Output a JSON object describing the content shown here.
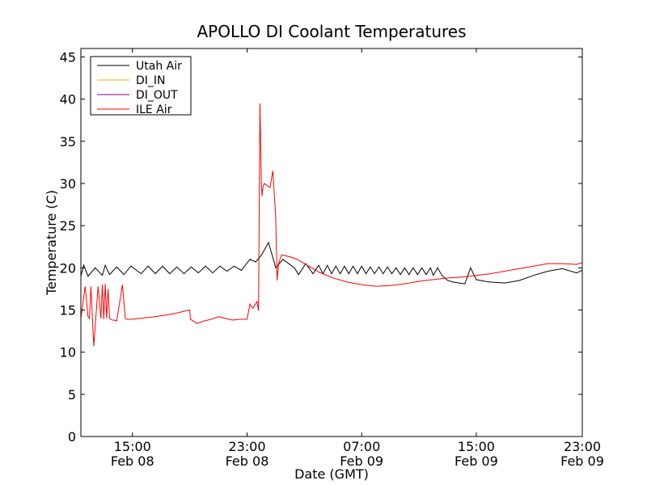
{
  "chart_data": {
    "type": "line",
    "title": "APOLLO DI Coolant Temperatures",
    "xlabel": "Date (GMT)",
    "ylabel": "Temperature (C)",
    "ylim": [
      0,
      46
    ],
    "xlim": [
      11.4,
      46.4
    ],
    "x_units": "hours since Feb 08 00:00 GMT",
    "y_ticks": [
      0,
      5,
      10,
      15,
      20,
      25,
      30,
      35,
      40,
      45
    ],
    "x_ticks": [
      {
        "x": 15,
        "time": "15:00",
        "date": "Feb 08"
      },
      {
        "x": 23,
        "time": "23:00",
        "date": "Feb 08"
      },
      {
        "x": 31,
        "time": "07:00",
        "date": "Feb 09"
      },
      {
        "x": 39,
        "time": "15:00",
        "date": "Feb 09"
      },
      {
        "x": 47,
        "time": "23:00",
        "date": "Feb 09"
      }
    ],
    "legend_position": "top-left",
    "series": [
      {
        "name": "Utah Air",
        "color": "#000000",
        "x": [
          11.4,
          11.6,
          11.9,
          12.4,
          12.9,
          13.1,
          13.4,
          13.9,
          14.4,
          14.9,
          15.6,
          16.1,
          16.6,
          17.1,
          17.6,
          18.1,
          18.6,
          19.1,
          19.6,
          20.1,
          20.6,
          21.1,
          21.6,
          22.1,
          22.6,
          23.2,
          23.6,
          24.0,
          24.5,
          25.0,
          25.5,
          25.9,
          26.3,
          26.6,
          27.1,
          27.6,
          28.0,
          28.3,
          28.6,
          28.9,
          29.2,
          29.5,
          29.8,
          30.1,
          30.4,
          30.7,
          31.0,
          31.3,
          31.6,
          31.9,
          32.2,
          32.5,
          32.8,
          33.1,
          33.4,
          33.7,
          34.0,
          34.3,
          34.6,
          34.9,
          35.2,
          35.5,
          35.8,
          36.0,
          36.3,
          36.6,
          37.0,
          37.4,
          37.8,
          38.2,
          38.6,
          39.0,
          39.3,
          39.6,
          40.0,
          41.0,
          42.0,
          43.0,
          44.0,
          45.0,
          46.0,
          46.4
        ],
        "values": [
          19.0,
          20.3,
          19.0,
          20.0,
          19.1,
          20.3,
          19.2,
          20.1,
          19.2,
          20.2,
          19.3,
          20.2,
          19.3,
          20.2,
          19.3,
          20.1,
          19.3,
          20.1,
          19.4,
          20.2,
          19.4,
          20.2,
          19.6,
          20.2,
          19.7,
          21.0,
          20.7,
          21.5,
          23.0,
          20.0,
          21.0,
          20.5,
          20.0,
          19.2,
          20.5,
          19.3,
          20.3,
          19.3,
          20.3,
          19.3,
          20.2,
          19.3,
          20.2,
          19.3,
          20.2,
          19.3,
          20.2,
          19.3,
          20.1,
          19.3,
          20.1,
          19.3,
          20.1,
          19.3,
          20.0,
          19.2,
          20.0,
          19.2,
          20.0,
          19.2,
          20.0,
          19.2,
          20.0,
          19.1,
          20.0,
          19.1,
          18.5,
          18.3,
          18.2,
          18.1,
          20.0,
          18.6,
          18.5,
          18.4,
          18.3,
          18.2,
          18.5,
          19.1,
          19.6,
          19.9,
          19.4,
          19.7
        ]
      },
      {
        "name": "DI_IN",
        "color": "#e8b800",
        "x": [],
        "values": []
      },
      {
        "name": "DI_OUT",
        "color": "#800080",
        "x": [],
        "values": []
      },
      {
        "name": "ILE Air",
        "color": "#ff0000",
        "x": [
          11.4,
          11.7,
          11.9,
          12.0,
          12.1,
          12.3,
          12.6,
          12.8,
          12.9,
          13.0,
          13.1,
          13.2,
          13.3,
          13.4,
          13.5,
          13.6,
          13.7,
          13.9,
          14.3,
          14.5,
          14.6,
          14.7,
          15.0,
          16.0,
          17.0,
          18.0,
          19.0,
          19.05,
          19.5,
          20.0,
          20.5,
          21.0,
          21.5,
          22.0,
          22.5,
          23.0,
          23.2,
          23.4,
          23.7,
          23.8,
          23.9,
          24.0,
          24.05,
          24.1,
          24.2,
          24.6,
          24.8,
          25.0,
          25.1,
          25.2,
          25.4,
          25.5,
          26.0,
          26.5,
          27.0,
          27.5,
          28.0,
          29.0,
          30.0,
          31.0,
          32.0,
          33.0,
          34.0,
          35.0,
          36.0,
          37.0,
          38.0,
          39.0,
          40.0,
          41.0,
          42.0,
          43.0,
          44.0,
          45.0,
          46.0,
          46.4
        ],
        "values": [
          14.0,
          17.8,
          14.2,
          14.0,
          17.8,
          10.7,
          17.8,
          14.0,
          18.0,
          13.9,
          18.1,
          14.0,
          17.5,
          14.0,
          13.9,
          13.8,
          13.8,
          13.7,
          18.0,
          14.0,
          13.9,
          13.9,
          13.9,
          14.1,
          14.3,
          14.6,
          15.0,
          13.9,
          13.4,
          13.7,
          13.9,
          14.2,
          14.0,
          13.8,
          13.9,
          13.9,
          15.7,
          15.2,
          16.0,
          14.9,
          39.5,
          30.0,
          28.5,
          29.5,
          30.0,
          29.5,
          31.5,
          26.0,
          18.5,
          20.5,
          21.5,
          21.5,
          21.3,
          21.0,
          20.5,
          20.0,
          19.5,
          18.8,
          18.3,
          18.0,
          17.8,
          17.9,
          18.1,
          18.4,
          18.6,
          18.8,
          18.9,
          19.1,
          19.3,
          19.6,
          19.9,
          20.2,
          20.5,
          20.5,
          20.4,
          20.6
        ]
      }
    ]
  }
}
